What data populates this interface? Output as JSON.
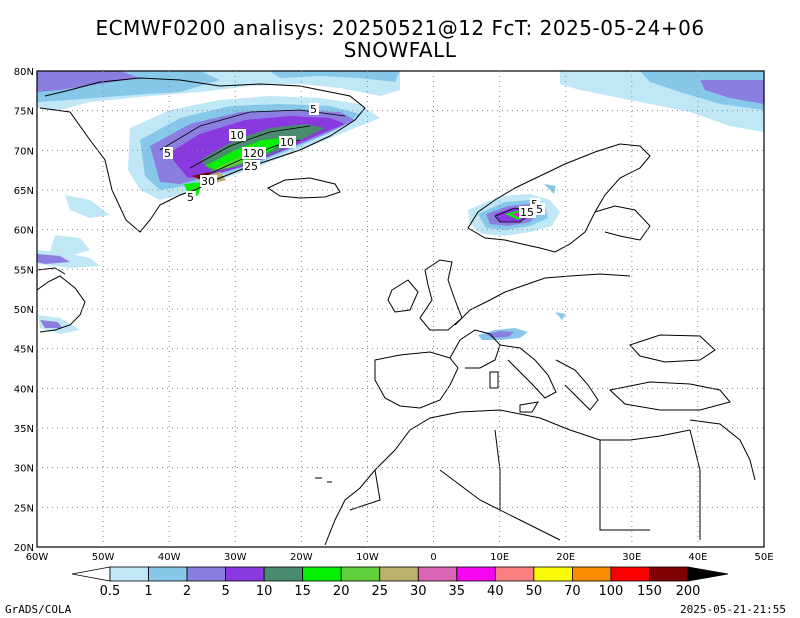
{
  "title": {
    "line1": "ECMWF0200 analisys: 20250521@12 FcT: 2025-05-24+06",
    "line2": "SNOWFALL"
  },
  "map": {
    "lon_range": [
      -60,
      50
    ],
    "lat_range": [
      20,
      80
    ],
    "gridlines": "dotted",
    "lat_labels": [
      "80N",
      "75N",
      "70N",
      "65N",
      "60N",
      "55N",
      "50N",
      "45N",
      "40N",
      "35N",
      "30N",
      "25N",
      "20N"
    ],
    "lon_labels": [
      "60W",
      "50W",
      "40W",
      "30W",
      "20W",
      "10W",
      "0",
      "10E",
      "20E",
      "30E",
      "40E",
      "50E"
    ],
    "contour_labels": [
      "5",
      "10",
      "10",
      "5",
      "120",
      "25",
      "30",
      "5",
      "5",
      "15",
      "5"
    ]
  },
  "colorbar": {
    "labels": [
      "0.5",
      "1",
      "2",
      "5",
      "10",
      "15",
      "20",
      "25",
      "30",
      "35",
      "40",
      "50",
      "70",
      "100",
      "150",
      "200"
    ],
    "colors": [
      "#ffffff",
      "#bfe7f5",
      "#87c8ea",
      "#8a7fe0",
      "#8a38e0",
      "#4a8a6e",
      "#06f006",
      "#5fd03b",
      "#bdb06c",
      "#d964b4",
      "#f505f0",
      "#f88080",
      "#fafa08",
      "#fa8c00",
      "#fa0000",
      "#7e0000"
    ]
  },
  "footer": {
    "left": "GrADS/COLA",
    "right": "2025-05-21-21:55"
  }
}
